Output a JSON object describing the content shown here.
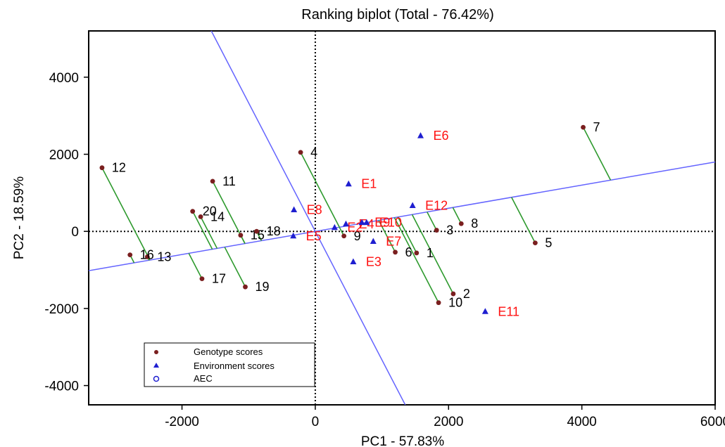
{
  "chart_data": {
    "type": "scatter",
    "title": "Ranking biplot (Total - 76.42%)",
    "xlabel": "PC1 - 57.83%",
    "ylabel": "PC2 - 18.59%",
    "xlim": [
      -3400,
      6000
    ],
    "ylim": [
      -4500,
      5200
    ],
    "x_ticks": [
      {
        "value": -2000,
        "label": "-2000"
      },
      {
        "value": 0,
        "label": "0"
      },
      {
        "value": 2000,
        "label": "2000"
      },
      {
        "value": 4000,
        "label": "4000"
      },
      {
        "value": 6000,
        "label": "6000"
      }
    ],
    "y_ticks": [
      {
        "value": -4000,
        "label": "-4000"
      },
      {
        "value": -2000,
        "label": "-2000"
      },
      {
        "value": 0,
        "label": "0"
      },
      {
        "value": 2000,
        "label": "2000"
      },
      {
        "value": 4000,
        "label": "4000"
      }
    ],
    "aec_slope": 0.3,
    "series": [
      {
        "name": "Genotype scores",
        "color": "#7a1f1f",
        "marker": "circle",
        "points": [
          {
            "label": "1",
            "x": 1520,
            "y": -560
          },
          {
            "label": "2",
            "x": 2070,
            "y": -1620
          },
          {
            "label": "3",
            "x": 1820,
            "y": 30
          },
          {
            "label": "4",
            "x": -220,
            "y": 2050
          },
          {
            "label": "5",
            "x": 3300,
            "y": -300
          },
          {
            "label": "6",
            "x": 1200,
            "y": -540
          },
          {
            "label": "7",
            "x": 4020,
            "y": 2700
          },
          {
            "label": "8",
            "x": 2190,
            "y": 200
          },
          {
            "label": "9",
            "x": 430,
            "y": -120
          },
          {
            "label": "10",
            "x": 1850,
            "y": -1850
          },
          {
            "label": "11",
            "x": -1540,
            "y": 1300
          },
          {
            "label": "12",
            "x": -3200,
            "y": 1650
          },
          {
            "label": "13",
            "x": -2520,
            "y": -660
          },
          {
            "label": "14",
            "x": -1720,
            "y": 380
          },
          {
            "label": "15",
            "x": -1120,
            "y": -100
          },
          {
            "label": "16",
            "x": -2780,
            "y": -610
          },
          {
            "label": "17",
            "x": -1700,
            "y": -1230
          },
          {
            "label": "18",
            "x": -880,
            "y": 0
          },
          {
            "label": "19",
            "x": -1050,
            "y": -1440
          },
          {
            "label": "20",
            "x": -1840,
            "y": 520
          }
        ]
      },
      {
        "name": "Environment scores",
        "color": "#1f1fd0",
        "marker": "triangle",
        "points": [
          {
            "label": "E1",
            "x": 500,
            "y": 1230
          },
          {
            "label": "E2",
            "x": 290,
            "y": 100
          },
          {
            "label": "E3",
            "x": 570,
            "y": -790
          },
          {
            "label": "E4",
            "x": 460,
            "y": 190
          },
          {
            "label": "E5",
            "x": -330,
            "y": -120
          },
          {
            "label": "E6",
            "x": 1580,
            "y": 2480
          },
          {
            "label": "E7",
            "x": 870,
            "y": -260
          },
          {
            "label": "E8",
            "x": -320,
            "y": 560
          },
          {
            "label": "E9",
            "x": 700,
            "y": 230
          },
          {
            "label": "E10",
            "x": 770,
            "y": 230
          },
          {
            "label": "E11",
            "x": 2550,
            "y": -2080
          },
          {
            "label": "E12",
            "x": 1460,
            "y": 670
          }
        ]
      }
    ],
    "legend": {
      "position": "bottom-left",
      "entries": [
        {
          "label": "Genotype scores",
          "marker": "circle",
          "color": "#7a1f1f"
        },
        {
          "label": "Environment scores",
          "marker": "triangle",
          "color": "#1f1fd0"
        },
        {
          "label": "AEC",
          "marker": "open-circle",
          "color": "#1f1fd0"
        }
      ]
    },
    "colors": {
      "aec_line": "#6464ff",
      "projection_line": "#2e9a2e",
      "environment_label": "#ff1010"
    }
  }
}
